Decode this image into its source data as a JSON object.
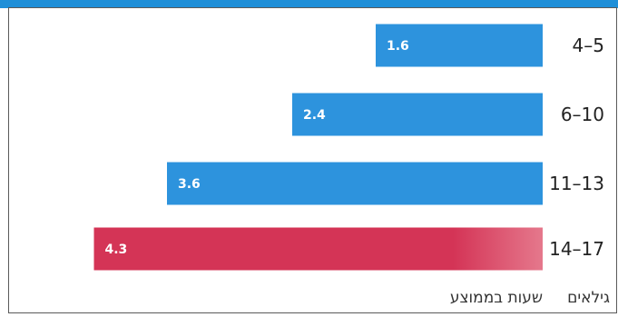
{
  "chart_data": {
    "type": "bar",
    "orientation": "horizontal",
    "direction": "rtl",
    "categories": [
      "4–5",
      "6–10",
      "11–13",
      "14–17"
    ],
    "values": [
      1.6,
      2.4,
      3.6,
      4.3
    ],
    "category_axis_label": "גילאים",
    "value_axis_label": "שעות בממוצע",
    "grid": false,
    "legend": "none"
  },
  "colors": {
    "primary_bar": "#2D93DD",
    "highlight_bar": "#D43456",
    "header_band": "#1F8FD8",
    "frame": "#5A5A5A"
  },
  "highlight_category": "14–17"
}
